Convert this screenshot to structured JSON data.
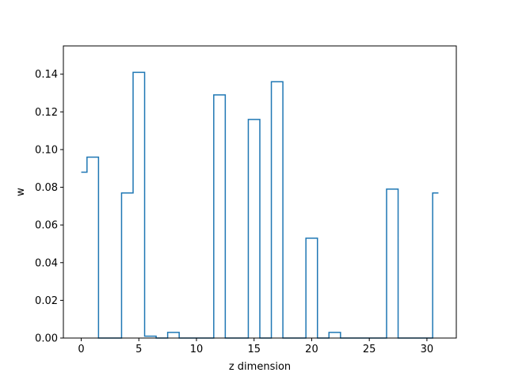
{
  "chart_data": {
    "type": "step",
    "title": "",
    "xlabel": "z dimension",
    "ylabel": "w",
    "xlim": [
      -1.55,
      32.55
    ],
    "ylim": [
      0,
      0.155
    ],
    "x_ticks": [
      0,
      5,
      10,
      15,
      20,
      25,
      30
    ],
    "y_ticks": [
      0.0,
      0.02,
      0.04,
      0.06,
      0.08,
      0.1,
      0.12,
      0.14
    ],
    "x_tick_labels": [
      "0",
      "5",
      "10",
      "15",
      "20",
      "25",
      "30"
    ],
    "y_tick_labels": [
      "0.00",
      "0.02",
      "0.04",
      "0.06",
      "0.08",
      "0.10",
      "0.12",
      "0.14"
    ],
    "grid": false,
    "line_color": "#1f77b4",
    "x": [
      0,
      1,
      2,
      3,
      4,
      5,
      6,
      7,
      8,
      9,
      10,
      11,
      12,
      13,
      14,
      15,
      16,
      17,
      18,
      19,
      20,
      21,
      22,
      23,
      24,
      25,
      26,
      27,
      28,
      29,
      30,
      31
    ],
    "values": [
      0.088,
      0.096,
      0.0,
      0.0,
      0.077,
      0.141,
      0.001,
      0.0,
      0.003,
      0.0,
      0.0,
      0.0,
      0.129,
      0.0,
      0.0,
      0.116,
      0.0,
      0.136,
      0.0,
      0.0,
      0.053,
      0.0,
      0.003,
      0.0,
      0.0,
      0.0,
      0.0,
      0.079,
      0.0,
      0.0,
      0.0,
      0.077
    ]
  }
}
